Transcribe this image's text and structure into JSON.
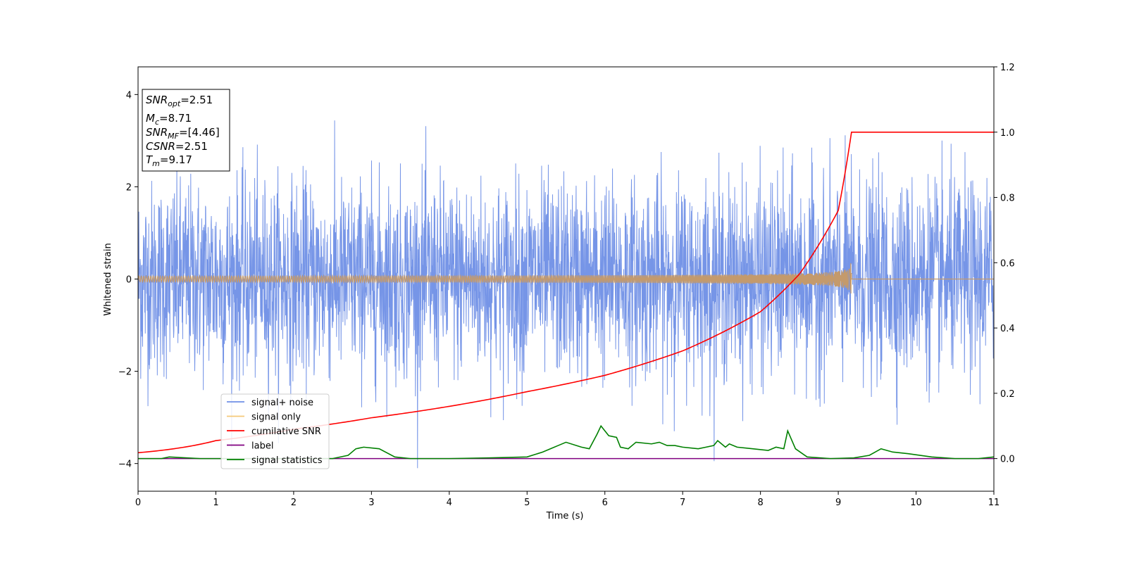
{
  "chart_data": {
    "type": "line",
    "xlabel": "Time (s)",
    "ylabel": "Whitened strain",
    "xlim": [
      0,
      11
    ],
    "ylim": [
      -4.6,
      4.6
    ],
    "ylim_right": [
      -0.1,
      1.2
    ],
    "xticks": [
      "0",
      "1",
      "2",
      "3",
      "4",
      "5",
      "6",
      "7",
      "8",
      "9",
      "10",
      "11"
    ],
    "yticks_left": [
      "−4",
      "−2",
      "0",
      "2",
      "4"
    ],
    "yticks_right": [
      "0.0",
      "0.2",
      "0.4",
      "0.6",
      "0.8",
      "1.0",
      "1.2"
    ],
    "grid": false,
    "legend_position": "lower-left",
    "legend": [
      {
        "label": "signal+ noise",
        "color": "#6f8fe6"
      },
      {
        "label": "signal only",
        "color": "#f5c97a"
      },
      {
        "label": "cumilative SNR",
        "color": "#ff0000"
      },
      {
        "label": "label",
        "color": "#800080"
      },
      {
        "label": "signal statistics",
        "color": "#008000"
      }
    ],
    "info_box": [
      {
        "base": "SNR",
        "sub": "opt",
        "value": "=2.51"
      },
      {
        "base": "M",
        "sub": "c",
        "value": "=8.71"
      },
      {
        "base": "SNR",
        "sub": "MF",
        "value": "=[4.46]"
      },
      {
        "base": "CSNR",
        "sub": "",
        "value": "=2.51"
      },
      {
        "base": "T",
        "sub": "m",
        "value": "=9.17"
      }
    ],
    "series": [
      {
        "name": "signal+ noise",
        "axis": "left",
        "style": "noise",
        "x_range": [
          0,
          11
        ],
        "y_approx_range": [
          -4.1,
          3.8
        ],
        "sigma": 1.0
      },
      {
        "name": "signal only",
        "axis": "left",
        "style": "chirp",
        "x_range": [
          0,
          9.17
        ],
        "envelope_end": 0.35
      },
      {
        "name": "cumilative SNR",
        "axis": "right",
        "x": [
          0,
          1,
          2,
          3,
          4,
          5,
          6,
          7,
          8,
          8.5,
          9,
          9.17,
          11
        ],
        "y": [
          0.018,
          0.055,
          0.09,
          0.125,
          0.16,
          0.205,
          0.255,
          0.33,
          0.45,
          0.565,
          0.76,
          1.0,
          1.0
        ]
      },
      {
        "name": "label",
        "axis": "right",
        "x": [
          0,
          11
        ],
        "y": [
          0.0,
          0.0
        ]
      },
      {
        "name": "signal statistics",
        "axis": "right",
        "x": [
          0,
          0.3,
          0.4,
          0.8,
          1.2,
          2.5,
          2.7,
          2.8,
          2.9,
          3.1,
          3.3,
          3.5,
          4.0,
          4.5,
          5.0,
          5.2,
          5.4,
          5.5,
          5.7,
          5.8,
          5.9,
          5.95,
          6.05,
          6.15,
          6.2,
          6.3,
          6.4,
          6.6,
          6.7,
          6.8,
          6.9,
          7.0,
          7.2,
          7.3,
          7.4,
          7.45,
          7.55,
          7.6,
          7.7,
          7.9,
          8.1,
          8.2,
          8.3,
          8.35,
          8.45,
          8.6,
          8.9,
          9.2,
          9.4,
          9.55,
          9.7,
          9.9,
          10.2,
          10.5,
          10.8,
          11
        ],
        "y": [
          0.0,
          0.0,
          0.005,
          0.0,
          0.0,
          0.0,
          0.01,
          0.03,
          0.035,
          0.03,
          0.005,
          0.0,
          0.0,
          0.002,
          0.005,
          0.02,
          0.04,
          0.05,
          0.035,
          0.03,
          0.075,
          0.1,
          0.07,
          0.065,
          0.035,
          0.03,
          0.05,
          0.045,
          0.05,
          0.04,
          0.04,
          0.035,
          0.03,
          0.035,
          0.04,
          0.055,
          0.035,
          0.045,
          0.035,
          0.03,
          0.025,
          0.035,
          0.03,
          0.085,
          0.03,
          0.005,
          0.0,
          0.002,
          0.01,
          0.03,
          0.02,
          0.015,
          0.005,
          0.0,
          0.0,
          0.005
        ]
      }
    ]
  }
}
